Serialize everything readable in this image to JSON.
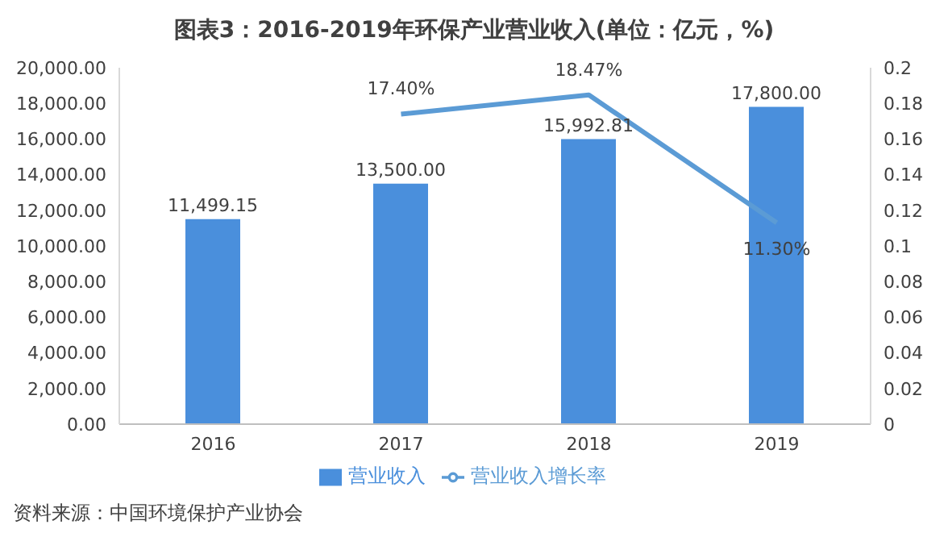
{
  "chart_data": {
    "type": "bar",
    "title": "图表3：2016-2019年环保产业营业收入(单位：亿元，%)",
    "categories": [
      "2016",
      "2017",
      "2018",
      "2019"
    ],
    "series": [
      {
        "name": "营业收入",
        "color": "#4a8fdc",
        "values": [
          11499.15,
          13500,
          15992.81,
          17800
        ],
        "value_labels": [
          "11,499.15",
          "13,500.00",
          "15,992.81",
          "17,800.00"
        ]
      },
      {
        "name": "营业收入增长率",
        "type": "line",
        "axis": "y2",
        "color": "#5b9bd5",
        "values": [
          null,
          0.174,
          0.1847,
          0.113
        ],
        "value_labels": [
          null,
          "17.40%",
          "18.47%",
          "11.30%"
        ]
      }
    ],
    "ylim": [
      0,
      20000
    ],
    "yticks": [
      {
        "value": 0,
        "label": "0.00"
      },
      {
        "value": 2000,
        "label": "2,000.00"
      },
      {
        "value": 4000,
        "label": "4,000.00"
      },
      {
        "value": 6000,
        "label": "6,000.00"
      },
      {
        "value": 8000,
        "label": "8,000.00"
      },
      {
        "value": 10000,
        "label": "10,000.00"
      },
      {
        "value": 12000,
        "label": "12,000.00"
      },
      {
        "value": 14000,
        "label": "14,000.00"
      },
      {
        "value": 16000,
        "label": "16,000.00"
      },
      {
        "value": 18000,
        "label": "18,000.00"
      },
      {
        "value": 20000,
        "label": "20,000.00"
      }
    ],
    "y2lim": [
      0,
      0.2
    ],
    "y2ticks": [
      0,
      0.02,
      0.04,
      0.06,
      0.08,
      0.1,
      0.12,
      0.14,
      0.16,
      0.18,
      0.2
    ],
    "legend": "bottom",
    "marker": "none",
    "grid": false,
    "annotations": [
      "资料来源：中国环境保护产业协会"
    ]
  }
}
